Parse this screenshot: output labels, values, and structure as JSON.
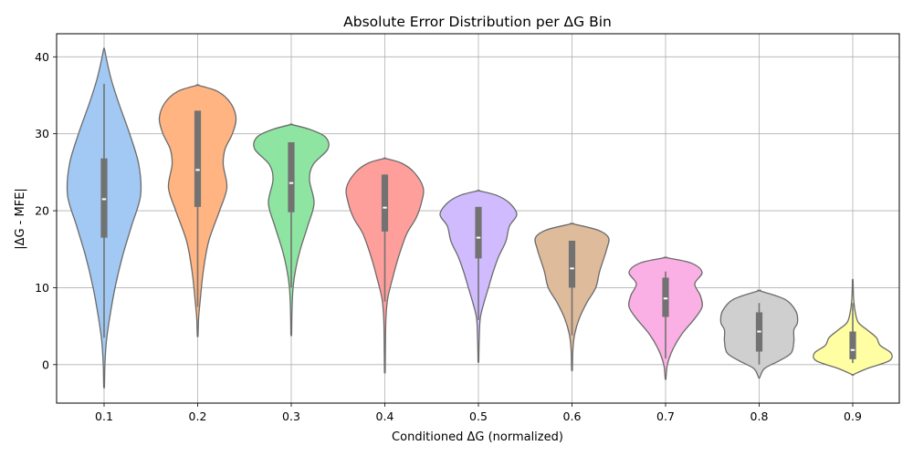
{
  "chart_data": {
    "type": "violin",
    "title": "Absolute Error Distribution per ΔG Bin",
    "xlabel": "Conditioned ΔG (normalized)",
    "ylabel": "|ΔG - MFE|",
    "categories": [
      "0.1",
      "0.2",
      "0.3",
      "0.4",
      "0.5",
      "0.6",
      "0.7",
      "0.8",
      "0.9"
    ],
    "ylim": [
      -5,
      43
    ],
    "yticks": [
      0,
      10,
      20,
      30,
      40
    ],
    "grid": true,
    "violins": [
      {
        "category": "0.1",
        "color": "#a1c9f4",
        "min": -2.8,
        "max": 41.0,
        "whisker_low": 3.5,
        "whisker_high": 36.5,
        "q1": 16.5,
        "median": 21.5,
        "q3": 26.8,
        "profile": [
          [
            -2.8,
            0.4
          ],
          [
            0,
            0.9
          ],
          [
            3,
            2.5
          ],
          [
            6,
            6
          ],
          [
            10,
            12
          ],
          [
            14,
            20
          ],
          [
            18,
            30
          ],
          [
            22,
            40
          ],
          [
            26,
            38
          ],
          [
            30,
            28
          ],
          [
            34,
            16
          ],
          [
            37,
            8
          ],
          [
            39.5,
            3
          ],
          [
            41,
            0.5
          ]
        ]
      },
      {
        "category": "0.2",
        "color": "#ffb482",
        "min": 3.8,
        "max": 36.3,
        "whisker_low": 7.5,
        "whisker_high": 33.0,
        "q1": 20.5,
        "median": 25.3,
        "q3": 33.0,
        "profile": [
          [
            3.8,
            0.4
          ],
          [
            6,
            1
          ],
          [
            8,
            2.5
          ],
          [
            12,
            6
          ],
          [
            16,
            12
          ],
          [
            20,
            24
          ],
          [
            23,
            32
          ],
          [
            26,
            28
          ],
          [
            28,
            30
          ],
          [
            30,
            38
          ],
          [
            32,
            42
          ],
          [
            34,
            36
          ],
          [
            35.5,
            22
          ],
          [
            36.3,
            0.5
          ]
        ]
      },
      {
        "category": "0.3",
        "color": "#8de5a1",
        "min": 4.0,
        "max": 31.2,
        "whisker_low": 10.0,
        "whisker_high": 28.9,
        "q1": 19.8,
        "median": 23.6,
        "q3": 28.9,
        "profile": [
          [
            4,
            0.4
          ],
          [
            7,
            0.8
          ],
          [
            10,
            2
          ],
          [
            12.5,
            5
          ],
          [
            15,
            10
          ],
          [
            18,
            18
          ],
          [
            21,
            25
          ],
          [
            24,
            20
          ],
          [
            26,
            24
          ],
          [
            28,
            40
          ],
          [
            29.5,
            38
          ],
          [
            30.5,
            22
          ],
          [
            31.2,
            0.5
          ]
        ]
      },
      {
        "category": "0.4",
        "color": "#ff9f9b",
        "min": -0.8,
        "max": 26.8,
        "whisker_low": 8.2,
        "whisker_high": 24.7,
        "q1": 17.3,
        "median": 20.4,
        "q3": 24.7,
        "profile": [
          [
            -0.8,
            0.4
          ],
          [
            3,
            0.7
          ],
          [
            6,
            1.2
          ],
          [
            8.5,
            3
          ],
          [
            11,
            8
          ],
          [
            14,
            15
          ],
          [
            17,
            24
          ],
          [
            19,
            34
          ],
          [
            21,
            40
          ],
          [
            23,
            42
          ],
          [
            25,
            32
          ],
          [
            26.2,
            18
          ],
          [
            26.8,
            0.5
          ]
        ]
      },
      {
        "category": "0.5",
        "color": "#d0bbff",
        "min": 0.5,
        "max": 22.6,
        "whisker_low": 5.8,
        "whisker_high": 20.5,
        "q1": 13.8,
        "median": 16.5,
        "q3": 20.5,
        "profile": [
          [
            0.5,
            0.4
          ],
          [
            3,
            0.8
          ],
          [
            6,
            2
          ],
          [
            8,
            6
          ],
          [
            10,
            11
          ],
          [
            12,
            16
          ],
          [
            14,
            22
          ],
          [
            16,
            30
          ],
          [
            18,
            34
          ],
          [
            19.5,
            42
          ],
          [
            21,
            34
          ],
          [
            22,
            20
          ],
          [
            22.6,
            0.5
          ]
        ]
      },
      {
        "category": "0.6",
        "color": "#debb9b",
        "min": -0.6,
        "max": 18.3,
        "whisker_low": 3.8,
        "whisker_high": 16.1,
        "q1": 10.0,
        "median": 12.5,
        "q3": 16.1,
        "profile": [
          [
            -0.6,
            0.4
          ],
          [
            2,
            1
          ],
          [
            4,
            3
          ],
          [
            6,
            8
          ],
          [
            8,
            16
          ],
          [
            10,
            26
          ],
          [
            12,
            30
          ],
          [
            13.5,
            34
          ],
          [
            15,
            38
          ],
          [
            16.5,
            40
          ],
          [
            17.5,
            28
          ],
          [
            18.3,
            0.5
          ]
        ]
      },
      {
        "category": "0.7",
        "color": "#fab0e4",
        "min": -1.8,
        "max": 13.9,
        "whisker_low": 0.8,
        "whisker_high": 12.1,
        "q1": 6.2,
        "median": 8.6,
        "q3": 11.3,
        "profile": [
          [
            -1.8,
            0.4
          ],
          [
            0,
            2
          ],
          [
            2,
            8
          ],
          [
            4,
            18
          ],
          [
            6,
            32
          ],
          [
            7.5,
            40
          ],
          [
            9,
            38
          ],
          [
            10.5,
            32
          ],
          [
            12,
            40
          ],
          [
            13.2,
            28
          ],
          [
            13.9,
            0.5
          ]
        ]
      },
      {
        "category": "0.8",
        "color": "#cfcfcf",
        "min": -1.7,
        "max": 9.6,
        "whisker_low": 0.0,
        "whisker_high": 8.0,
        "q1": 1.7,
        "median": 4.3,
        "q3": 6.8,
        "profile": [
          [
            -1.7,
            0.5
          ],
          [
            -0.5,
            6
          ],
          [
            0.5,
            22
          ],
          [
            1.5,
            35
          ],
          [
            3,
            38
          ],
          [
            4.5,
            38
          ],
          [
            5.5,
            42
          ],
          [
            7,
            40
          ],
          [
            8.5,
            28
          ],
          [
            9.6,
            0.5
          ]
        ]
      },
      {
        "category": "0.9",
        "color": "#fffea3",
        "min": -1.3,
        "max": 11.0,
        "whisker_low": 0.2,
        "whisker_high": 8.0,
        "q1": 0.7,
        "median": 1.9,
        "q3": 4.3,
        "profile": [
          [
            -1.3,
            0.5
          ],
          [
            -0.5,
            16
          ],
          [
            0.5,
            40
          ],
          [
            1.5,
            42
          ],
          [
            2.5,
            30
          ],
          [
            3.5,
            26
          ],
          [
            4.5,
            16
          ],
          [
            5.5,
            6
          ],
          [
            7,
            2.5
          ],
          [
            8.5,
            1
          ],
          [
            10,
            0.5
          ],
          [
            11,
            0.3
          ]
        ]
      }
    ]
  }
}
